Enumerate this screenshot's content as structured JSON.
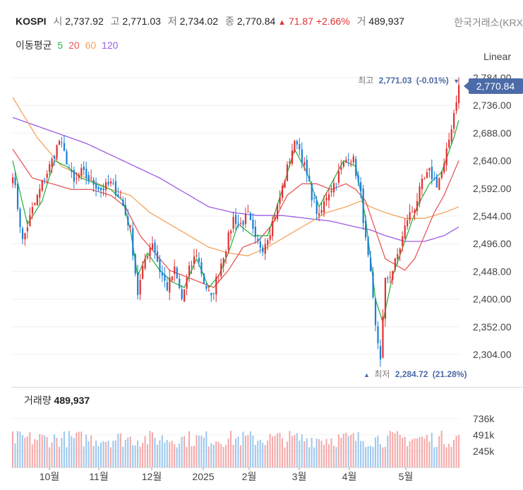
{
  "header": {
    "symbol": "KOSPI",
    "open_label": "시",
    "open": "2,737.92",
    "high_label": "고",
    "high": "2,771.03",
    "low_label": "저",
    "low": "2,734.02",
    "close_label": "종",
    "close": "2,770.84",
    "change_arrow": "▲",
    "change": "71.87",
    "change_pct": "+2.66%",
    "volume_label": "거",
    "volume": "489,937",
    "exchange": "한국거래소(KRX"
  },
  "moving_average": {
    "label": "이동평균",
    "periods": [
      {
        "period": "5",
        "color": "#2fb344"
      },
      {
        "period": "20",
        "color": "#e8585a"
      },
      {
        "period": "60",
        "color": "#f4a35c"
      },
      {
        "period": "120",
        "color": "#9b5de5"
      }
    ]
  },
  "scale_mode": "Linear",
  "colors": {
    "up": "#e03131",
    "down": "#1c7ed6",
    "accent": "#4c6ba8",
    "ma5": "#2fb344",
    "ma20": "#e8585a",
    "ma60": "#f4a35c",
    "ma120": "#9b5de5"
  },
  "chart_data": [
    {
      "type": "candlestick",
      "y_ticks": [
        "2,304.00",
        "2,352.00",
        "2,400.00",
        "2,448.00",
        "2,496.00",
        "2,544.00",
        "2,592.00",
        "2,640.00",
        "2,688.00",
        "2,736.00",
        "2,784.00"
      ],
      "ylim": [
        2270,
        2790
      ],
      "x_ticks": [
        "10월",
        "11월",
        "12월",
        "2025",
        "2월",
        "3월",
        "4월",
        "5월"
      ],
      "last_price_label": "2,770.84",
      "high_annotation": {
        "label": "최고",
        "value": "2,771.03",
        "pct": "(-0.01%)",
        "arrow": "▼"
      },
      "low_annotation": {
        "label": "최저",
        "value": "2,284.72",
        "pct": "(21.28%)",
        "arrow": "▲"
      },
      "grid": true,
      "close_path": [
        [
          0,
          2620
        ],
        [
          4,
          2500
        ],
        [
          8,
          2555
        ],
        [
          12,
          2600
        ],
        [
          16,
          2640
        ],
        [
          19,
          2675
        ],
        [
          22,
          2640
        ],
        [
          25,
          2600
        ],
        [
          28,
          2620
        ],
        [
          32,
          2605
        ],
        [
          36,
          2590
        ],
        [
          40,
          2600
        ],
        [
          44,
          2575
        ],
        [
          48,
          2520
        ],
        [
          51,
          2410
        ],
        [
          54,
          2470
        ],
        [
          57,
          2500
        ],
        [
          60,
          2450
        ],
        [
          63,
          2420
        ],
        [
          66,
          2450
        ],
        [
          69,
          2400
        ],
        [
          72,
          2450
        ],
        [
          75,
          2480
        ],
        [
          78,
          2430
        ],
        [
          81,
          2400
        ],
        [
          84,
          2450
        ],
        [
          87,
          2490
        ],
        [
          90,
          2540
        ],
        [
          93,
          2530
        ],
        [
          96,
          2545
        ],
        [
          99,
          2500
        ],
        [
          102,
          2490
        ],
        [
          105,
          2520
        ],
        [
          108,
          2560
        ],
        [
          111,
          2610
        ],
        [
          114,
          2660
        ],
        [
          116,
          2675
        ],
        [
          119,
          2630
        ],
        [
          122,
          2580
        ],
        [
          125,
          2540
        ],
        [
          128,
          2580
        ],
        [
          131,
          2600
        ],
        [
          134,
          2625
        ],
        [
          137,
          2650
        ],
        [
          139,
          2640
        ],
        [
          142,
          2580
        ],
        [
          144,
          2500
        ],
        [
          146,
          2440
        ],
        [
          148,
          2350
        ],
        [
          150,
          2300
        ],
        [
          152,
          2430
        ],
        [
          155,
          2450
        ],
        [
          158,
          2490
        ],
        [
          161,
          2540
        ],
        [
          164,
          2560
        ],
        [
          167,
          2600
        ],
        [
          170,
          2620
        ],
        [
          173,
          2600
        ],
        [
          176,
          2630
        ],
        [
          179,
          2700
        ],
        [
          182,
          2770.84
        ]
      ],
      "ma_paths": {
        "ma5": [
          [
            0,
            2640
          ],
          [
            6,
            2530
          ],
          [
            12,
            2570
          ],
          [
            17,
            2640
          ],
          [
            22,
            2630
          ],
          [
            28,
            2610
          ],
          [
            34,
            2600
          ],
          [
            40,
            2590
          ],
          [
            45,
            2570
          ],
          [
            48,
            2520
          ],
          [
            51,
            2440
          ],
          [
            55,
            2480
          ],
          [
            60,
            2450
          ],
          [
            65,
            2430
          ],
          [
            70,
            2420
          ],
          [
            75,
            2470
          ],
          [
            80,
            2420
          ],
          [
            84,
            2440
          ],
          [
            88,
            2480
          ],
          [
            92,
            2530
          ],
          [
            98,
            2510
          ],
          [
            104,
            2510
          ],
          [
            110,
            2590
          ],
          [
            115,
            2660
          ],
          [
            120,
            2620
          ],
          [
            125,
            2560
          ],
          [
            130,
            2600
          ],
          [
            135,
            2640
          ],
          [
            140,
            2630
          ],
          [
            144,
            2540
          ],
          [
            148,
            2400
          ],
          [
            151,
            2360
          ],
          [
            155,
            2440
          ],
          [
            160,
            2500
          ],
          [
            165,
            2560
          ],
          [
            170,
            2600
          ],
          [
            175,
            2620
          ],
          [
            180,
            2680
          ],
          [
            182,
            2710
          ]
        ],
        "ma20": [
          [
            0,
            2660
          ],
          [
            8,
            2610
          ],
          [
            16,
            2600
          ],
          [
            24,
            2590
          ],
          [
            32,
            2590
          ],
          [
            40,
            2580
          ],
          [
            46,
            2560
          ],
          [
            52,
            2510
          ],
          [
            58,
            2480
          ],
          [
            64,
            2450
          ],
          [
            70,
            2440
          ],
          [
            76,
            2430
          ],
          [
            82,
            2420
          ],
          [
            88,
            2450
          ],
          [
            94,
            2490
          ],
          [
            100,
            2500
          ],
          [
            106,
            2530
          ],
          [
            112,
            2580
          ],
          [
            118,
            2600
          ],
          [
            124,
            2600
          ],
          [
            130,
            2590
          ],
          [
            136,
            2600
          ],
          [
            140,
            2590
          ],
          [
            144,
            2570
          ],
          [
            148,
            2520
          ],
          [
            152,
            2470
          ],
          [
            156,
            2460
          ],
          [
            160,
            2450
          ],
          [
            164,
            2470
          ],
          [
            168,
            2510
          ],
          [
            172,
            2550
          ],
          [
            176,
            2580
          ],
          [
            180,
            2620
          ],
          [
            182,
            2640
          ]
        ],
        "ma60": [
          [
            0,
            2750
          ],
          [
            10,
            2680
          ],
          [
            20,
            2630
          ],
          [
            30,
            2610
          ],
          [
            40,
            2590
          ],
          [
            48,
            2580
          ],
          [
            56,
            2550
          ],
          [
            64,
            2530
          ],
          [
            72,
            2510
          ],
          [
            80,
            2490
          ],
          [
            88,
            2480
          ],
          [
            96,
            2475
          ],
          [
            104,
            2490
          ],
          [
            112,
            2510
          ],
          [
            120,
            2530
          ],
          [
            128,
            2550
          ],
          [
            136,
            2560
          ],
          [
            142,
            2570
          ],
          [
            146,
            2560
          ],
          [
            152,
            2550
          ],
          [
            160,
            2540
          ],
          [
            168,
            2540
          ],
          [
            176,
            2550
          ],
          [
            182,
            2560
          ]
        ],
        "ma120": [
          [
            0,
            2715
          ],
          [
            10,
            2700
          ],
          [
            20,
            2685
          ],
          [
            30,
            2670
          ],
          [
            40,
            2650
          ],
          [
            50,
            2630
          ],
          [
            60,
            2610
          ],
          [
            70,
            2585
          ],
          [
            80,
            2560
          ],
          [
            90,
            2550
          ],
          [
            100,
            2545
          ],
          [
            110,
            2545
          ],
          [
            120,
            2540
          ],
          [
            130,
            2535
          ],
          [
            140,
            2525
          ],
          [
            146,
            2520
          ],
          [
            152,
            2510
          ],
          [
            160,
            2500
          ],
          [
            168,
            2500
          ],
          [
            176,
            2510
          ],
          [
            182,
            2525
          ]
        ]
      },
      "n_sessions": 183
    },
    {
      "type": "bar",
      "title": "거래량",
      "latest": "489,937",
      "y_ticks": [
        "245k",
        "491k",
        "736k"
      ],
      "ylim": [
        0,
        830000
      ],
      "note": "daily trading volume bars colored by up/down session"
    }
  ]
}
